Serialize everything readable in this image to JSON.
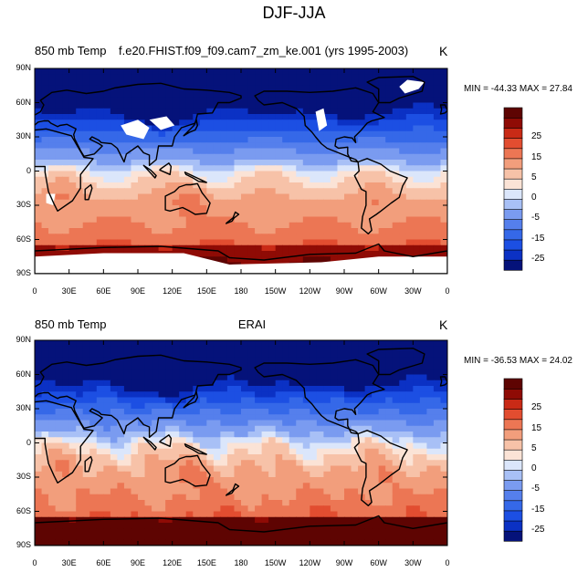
{
  "main_title": "DJF-JJA",
  "panels": [
    {
      "left_label": "850 mb Temp",
      "center_label": "f.e20.FHIST.f09_f09.cam7_zm_ke.001 (yrs 1995-2003)",
      "units": "K",
      "min_max": "MIN = -44.33 MAX =  27.84",
      "has_missing_data": true
    },
    {
      "left_label": "850 mb Temp",
      "center_label": "ERAI",
      "units": "K",
      "min_max": "MIN = -36.53 MAX =  24.02",
      "has_missing_data": false
    }
  ],
  "lat_labels": [
    "90N",
    "60N",
    "30N",
    "0",
    "30S",
    "60S",
    "90S"
  ],
  "lon_labels": [
    "0",
    "30E",
    "60E",
    "90E",
    "120E",
    "150E",
    "180",
    "150W",
    "120W",
    "90W",
    "60W",
    "30W",
    "0"
  ],
  "colorbar": {
    "tick_labels": [
      "25",
      "15",
      "5",
      "0",
      "-5",
      "-15",
      "-25"
    ],
    "levels": [
      -30,
      -25,
      -20,
      -15,
      -10,
      -5,
      -2,
      0,
      2,
      5,
      10,
      15,
      20,
      25,
      30
    ],
    "colors": [
      "#05127a",
      "#0b31c4",
      "#1c4fe3",
      "#3568e8",
      "#557fec",
      "#7a9bf0",
      "#a8c0f6",
      "#dbe6fb",
      "#fbe3d6",
      "#f7c2a8",
      "#f29e7c",
      "#ec7654",
      "#e24d30",
      "#c92a16",
      "#8f0b05",
      "#5e0402"
    ]
  }
}
